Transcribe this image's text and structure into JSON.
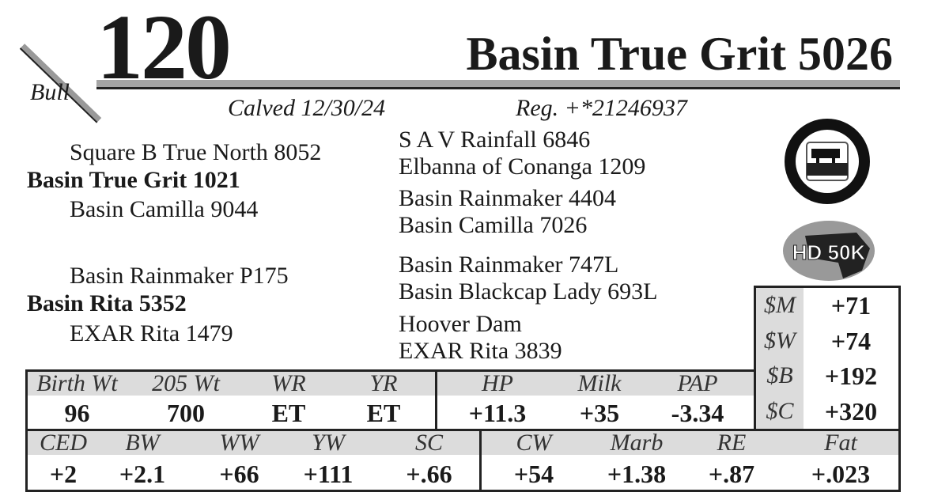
{
  "lot": {
    "number": "120",
    "sex": "Bull",
    "name": "Basin True Grit 5026",
    "calved": "Calved 12/30/24",
    "reg": "Reg. +*21246937"
  },
  "pedigree": {
    "sire": "Basin True Grit 1021",
    "sire_sire": "Square B True North 8052",
    "sire_dam": "Basin Camilla 9044",
    "ss_sire": "S A V Rainfall 6846",
    "ss_dam": "Elbanna of Conanga 1209",
    "sd_sire": "Basin Rainmaker 4404",
    "sd_dam": "Basin Camilla 7026",
    "dam": "Basin Rita 5352",
    "dam_sire": "Basin Rainmaker P175",
    "dam_dam": "EXAR Rita 1479",
    "ds_sire": "Basin Rainmaker 747L",
    "ds_dam": "Basin Blackcap Lady 693L",
    "dd_sire": "Hoover Dam",
    "dd_dam": "EXAR Rita 3839"
  },
  "logos": {
    "cab": "Certified Angus Beef - Targeting the Brand",
    "hd50k": "HD 50K"
  },
  "indexes": [
    {
      "label": "$M",
      "value": "+71"
    },
    {
      "label": "$W",
      "value": "+74"
    },
    {
      "label": "$B",
      "value": "+192"
    },
    {
      "label": "$C",
      "value": "+320"
    }
  ],
  "row1": [
    {
      "label": "Birth Wt",
      "value": "96"
    },
    {
      "label": "205 Wt",
      "value": "700"
    },
    {
      "label": "WR",
      "value": "ET"
    },
    {
      "label": "YR",
      "value": "ET"
    },
    {
      "label": "HP",
      "value": "+11.3"
    },
    {
      "label": "Milk",
      "value": "+35"
    },
    {
      "label": "PAP",
      "value": "-3.34"
    }
  ],
  "row2": [
    {
      "label": "CED",
      "value": "+2"
    },
    {
      "label": "BW",
      "value": "+2.1"
    },
    {
      "label": "WW",
      "value": "+66"
    },
    {
      "label": "YW",
      "value": "+111"
    },
    {
      "label": "SC",
      "value": "+.66"
    },
    {
      "label": "CW",
      "value": "+54"
    },
    {
      "label": "Marb",
      "value": "+1.38"
    },
    {
      "label": "RE",
      "value": "+.87"
    },
    {
      "label": "Fat",
      "value": "+.023"
    }
  ]
}
